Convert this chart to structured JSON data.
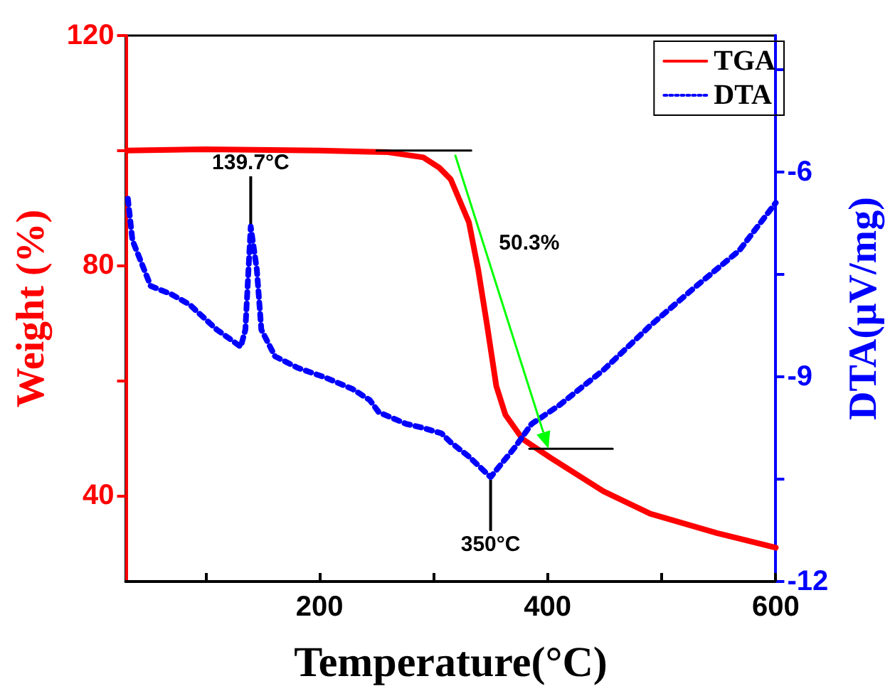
{
  "chart_data": {
    "type": "line",
    "xlabel": "Temperature(°C)",
    "ylabel": "Weight (%)",
    "y2label": "DTA(μV/mg)",
    "xlim": [
      30,
      600
    ],
    "xticks": [
      {
        "value": 100,
        "label": null
      },
      200,
      {
        "value": 300,
        "label": null
      },
      400,
      {
        "value": 500,
        "label": null
      },
      600
    ],
    "ylim": [
      25,
      120
    ],
    "yticks": [
      40,
      {
        "value": 60,
        "label": null
      },
      80,
      {
        "value": 100,
        "label": null
      },
      120
    ],
    "y2lim": [
      -12,
      -4
    ],
    "y2ticks": [
      -12,
      {
        "value": -10.5,
        "label": null
      },
      -9,
      {
        "value": -7.5,
        "label": null
      },
      -6,
      {
        "value": -4.5,
        "label": null
      }
    ],
    "legend": "top right",
    "grid": false,
    "series": [
      {
        "name": "TGA",
        "color": "#ff0000",
        "line_style": "solid",
        "x": [
          31,
          100,
          200,
          260,
          291,
          305,
          315,
          331,
          339,
          347,
          355,
          363,
          378,
          402,
          449,
          490,
          549,
          600
        ],
        "values": [
          100,
          100.2,
          100,
          99.7,
          98.8,
          97,
          95,
          87.5,
          79.4,
          69.5,
          59,
          54,
          49.8,
          46.6,
          40.7,
          36.8,
          33.4,
          30.9
        ]
      },
      {
        "name": "DTA",
        "color": "#0000ff",
        "line_style": "dotted",
        "axis": "y2",
        "x": [
          32,
          36,
          52,
          70,
          86,
          110,
          131,
          135,
          139.7,
          145,
          149,
          161,
          181,
          205,
          229,
          244,
          252,
          276,
          291,
          307,
          315,
          331,
          350,
          371,
          386,
          410,
          449,
          490,
          529,
          568,
          600
        ],
        "values": [
          -6.39,
          -7.0,
          -7.67,
          -7.79,
          -7.94,
          -8.31,
          -8.56,
          -8.31,
          -6.8,
          -7.42,
          -8.31,
          -8.7,
          -8.87,
          -9.01,
          -9.18,
          -9.34,
          -9.52,
          -9.69,
          -9.75,
          -9.83,
          -9.96,
          -10.17,
          -10.47,
          -10.04,
          -9.69,
          -9.42,
          -8.9,
          -8.25,
          -7.69,
          -7.15,
          -6.45
        ]
      },
      {
        "color": "#000000",
        "line_style": "solid",
        "x": [
          250,
          333
        ],
        "values": [
          100,
          100
        ]
      },
      {
        "color": "#000000",
        "line_style": "solid",
        "x": [
          384,
          457
        ],
        "values": [
          48.1,
          48.1
        ]
      }
    ],
    "annotations": [
      {
        "text": "139.7°C",
        "x": 139.7,
        "y": 86.6
      },
      {
        "text": "350°C",
        "x": 350,
        "y": 42.7
      },
      "50.3%"
    ]
  }
}
